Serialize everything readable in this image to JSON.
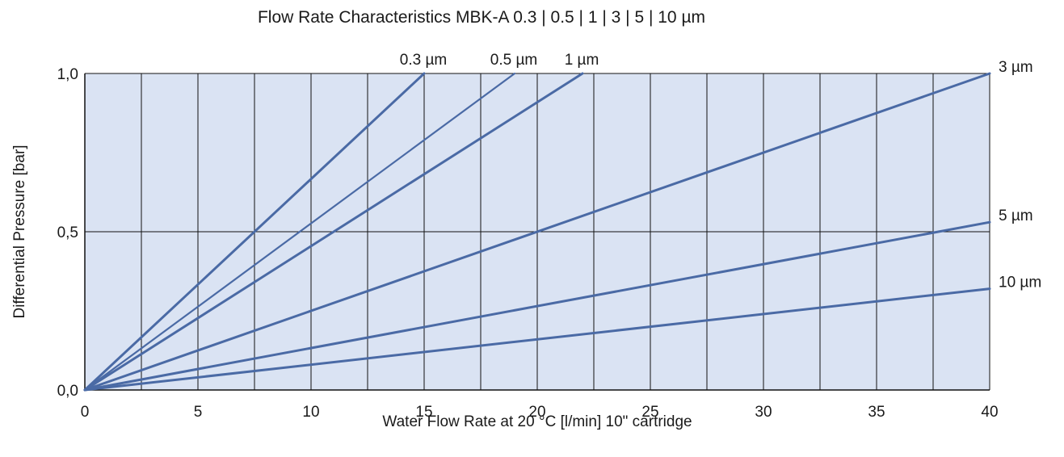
{
  "chart_data": {
    "type": "line",
    "title": "Flow Rate Characteristics MBK-A 0.3 | 0.5 | 1 | 3 | 5 | 10 µm",
    "xlabel": "Water Flow Rate at 20 °C [l/min] 10\" cartridge",
    "ylabel": "Differential Pressure [bar]",
    "xlim": [
      0,
      40
    ],
    "ylim": [
      0,
      1.0
    ],
    "x_ticks": [
      0,
      5,
      10,
      15,
      20,
      25,
      30,
      35,
      40
    ],
    "x_tick_labels": [
      "0",
      "5",
      "10",
      "15",
      "20",
      "25",
      "30",
      "35",
      "40"
    ],
    "x_minor_gridlines": [
      2.5,
      7.5,
      12.5,
      17.5,
      22.5,
      27.5,
      32.5,
      37.5
    ],
    "y_ticks": [
      0,
      0.5,
      1.0
    ],
    "y_tick_labels": [
      "0,0",
      "0,5",
      "1,0"
    ],
    "grid": true,
    "plot_background": "#dae3f3",
    "line_color": "#4a6aa5",
    "series": [
      {
        "name": "0.3 µm",
        "x": [
          0,
          15
        ],
        "y": [
          0,
          1.0
        ]
      },
      {
        "name": "0.5 µm",
        "x": [
          0,
          19
        ],
        "y": [
          0,
          1.0
        ]
      },
      {
        "name": "1 µm",
        "x": [
          0,
          22
        ],
        "y": [
          0,
          1.0
        ]
      },
      {
        "name": "3 µm",
        "x": [
          0,
          40
        ],
        "y": [
          0,
          1.0
        ]
      },
      {
        "name": "5 µm",
        "x": [
          0,
          40
        ],
        "y": [
          0,
          0.53
        ]
      },
      {
        "name": "10 µm",
        "x": [
          0,
          40
        ],
        "y": [
          0,
          0.32
        ]
      }
    ]
  }
}
